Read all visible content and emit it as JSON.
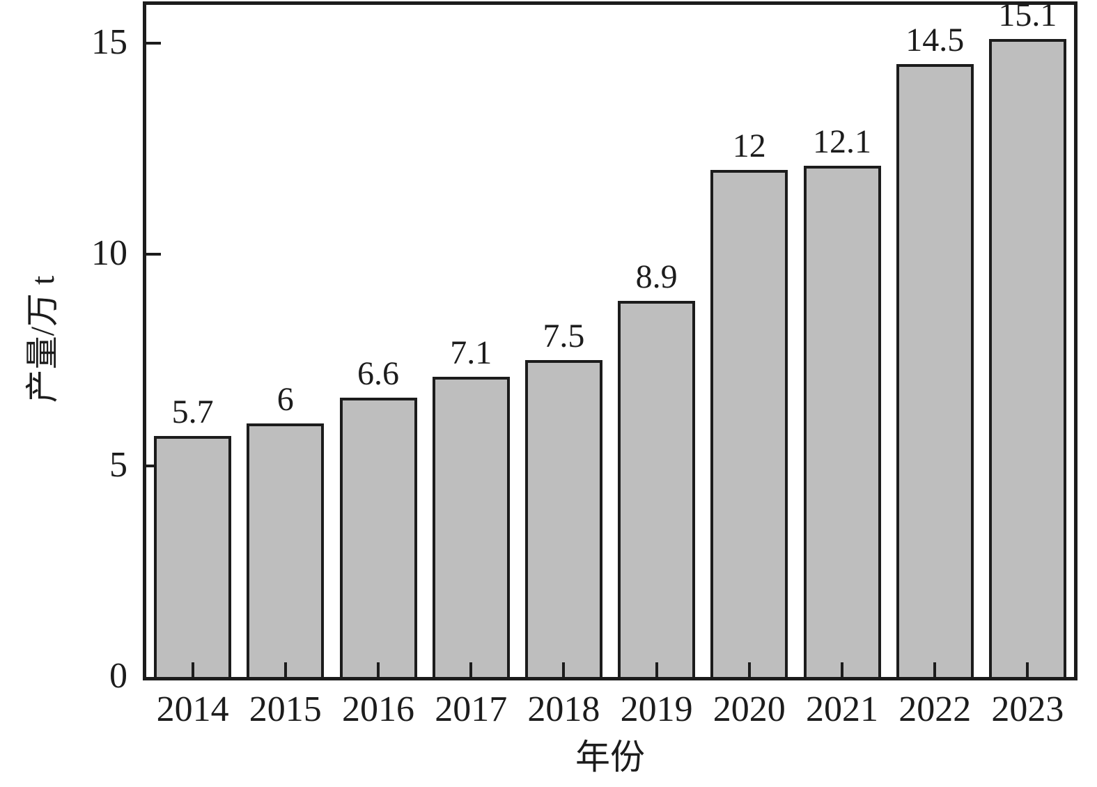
{
  "chart_data": {
    "type": "bar",
    "title": "",
    "xlabel": "年份",
    "ylabel": "产量/万 t",
    "categories": [
      "2014",
      "2015",
      "2016",
      "2017",
      "2018",
      "2019",
      "2020",
      "2021",
      "2022",
      "2023"
    ],
    "values": [
      5.7,
      6,
      6.6,
      7.1,
      7.5,
      8.9,
      12,
      12.1,
      14.5,
      15.1
    ],
    "value_labels": [
      "5.7",
      "6",
      "6.6",
      "7.1",
      "7.5",
      "8.9",
      "12",
      "12.1",
      "14.5",
      "15.1"
    ],
    "yticks": [
      0,
      5,
      10,
      15
    ],
    "ytick_labels": [
      "0",
      "5",
      "10",
      "15"
    ],
    "ylim": [
      0,
      15.9
    ],
    "legend": null,
    "grid": false,
    "bar_fill_color": "#bebebe",
    "bar_border_color": "#1c1c1c",
    "axis_color": "#1c1c1c",
    "text_color": "#1c1c1c",
    "background_color": "#ffffff"
  }
}
